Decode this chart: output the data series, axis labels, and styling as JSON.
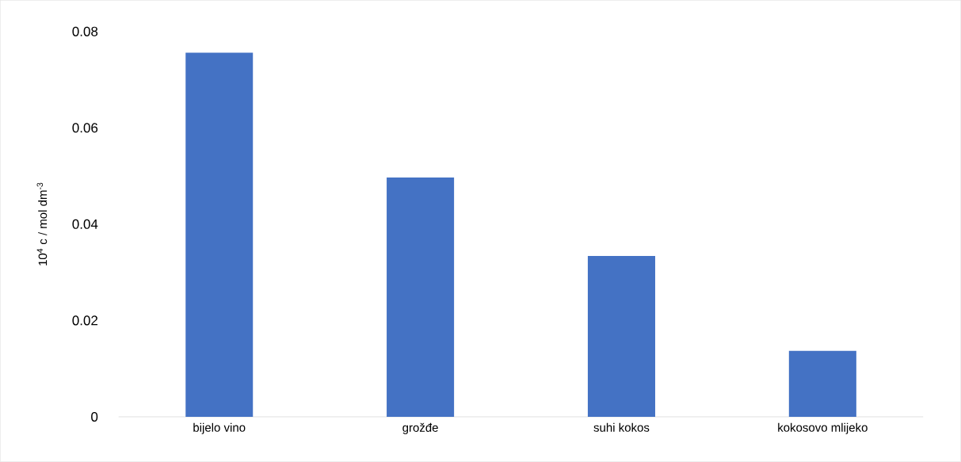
{
  "chart_data": {
    "type": "bar",
    "ylabel": "10$^{4}$ c / mol dm$^{-3}$",
    "categories": [
      "bijelo vino",
      "grožđe",
      "suhi kokos",
      "kokosovo mlijeko"
    ],
    "values": [
      0.0756,
      0.0497,
      0.0334,
      0.0137
    ],
    "color": "#4472c4",
    "ylim": [
      0,
      0.08
    ],
    "yticks": [
      0,
      0.02,
      0.04,
      0.06,
      0.08
    ]
  }
}
